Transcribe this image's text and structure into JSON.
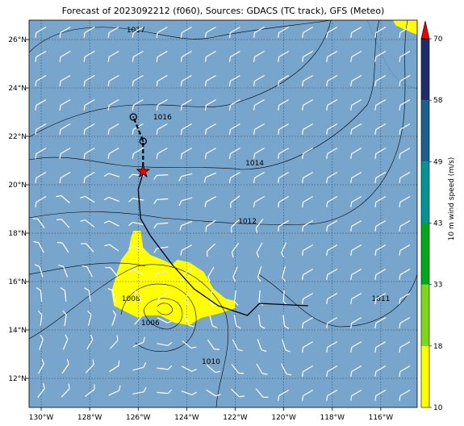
{
  "title": "Forecast of 2023092212 (f060), Sources: GDACS (TC track), GFS (Meteo)",
  "map": {
    "extent": {
      "lon": [
        -130.5,
        -114.5
      ],
      "lat": [
        10.8,
        26.8
      ]
    },
    "ocean_color": "#77a5cc",
    "land_color": "#6e9fc8",
    "lon_ticks": [
      {
        "value": -130,
        "label": "130°W"
      },
      {
        "value": -128,
        "label": "128°W"
      },
      {
        "value": -126,
        "label": "126°W"
      },
      {
        "value": -124,
        "label": "124°W"
      },
      {
        "value": -122,
        "label": "122°W"
      },
      {
        "value": -120,
        "label": "120°W"
      },
      {
        "value": -118,
        "label": "118°W"
      },
      {
        "value": -116,
        "label": "116°W"
      }
    ],
    "lat_ticks": [
      {
        "value": 12,
        "label": "12°N"
      },
      {
        "value": 14,
        "label": "14°N"
      },
      {
        "value": 16,
        "label": "16°N"
      },
      {
        "value": 18,
        "label": "18°N"
      },
      {
        "value": 20,
        "label": "20°N"
      },
      {
        "value": 22,
        "label": "22°N"
      },
      {
        "value": 24,
        "label": "24°N"
      },
      {
        "value": 26,
        "label": "26°N"
      }
    ],
    "isobar_labels": [
      {
        "text": "1017",
        "lon": -126.1,
        "lat": 26.3
      },
      {
        "text": "1016",
        "lon": -125.0,
        "lat": 22.7
      },
      {
        "text": "1014",
        "lon": -121.2,
        "lat": 20.8
      },
      {
        "text": "1012",
        "lon": -121.5,
        "lat": 18.4
      },
      {
        "text": "1011",
        "lon": -116.0,
        "lat": 15.2
      },
      {
        "text": "1008",
        "lon": -126.3,
        "lat": 15.2
      },
      {
        "text": "1006",
        "lon": -125.5,
        "lat": 14.2
      },
      {
        "text": "1010",
        "lon": -123.0,
        "lat": 12.6
      }
    ],
    "storm_track": {
      "past": [
        [
          -119.0,
          15.0
        ],
        [
          -121.0,
          15.1
        ],
        [
          -121.5,
          14.6
        ],
        [
          -122.7,
          15.0
        ],
        [
          -123.7,
          15.7
        ],
        [
          -124.6,
          16.7
        ],
        [
          -125.5,
          17.9
        ],
        [
          -125.9,
          18.6
        ],
        [
          -126.0,
          19.8
        ],
        [
          -125.8,
          20.5
        ]
      ],
      "forecast": [
        [
          -125.8,
          20.5
        ],
        [
          -125.8,
          21.3
        ],
        [
          -125.8,
          21.8
        ],
        [
          -126.0,
          22.3
        ],
        [
          -126.2,
          22.8
        ]
      ],
      "current_position": [
        -125.8,
        20.55
      ],
      "forecast_points": [
        [
          -125.8,
          21.8
        ],
        [
          -126.2,
          22.8
        ]
      ],
      "current_color": "#ee0000"
    },
    "wind_areas": [
      {
        "color": "#ffff00",
        "polygon": [
          [
            -126.2,
            18.1
          ],
          [
            -125.9,
            18.1
          ],
          [
            -125.8,
            17.4
          ],
          [
            -125.5,
            17.1
          ],
          [
            -125.0,
            16.9
          ],
          [
            -124.6,
            16.7
          ],
          [
            -124.4,
            16.9
          ],
          [
            -123.9,
            16.8
          ],
          [
            -123.3,
            16.4
          ],
          [
            -122.9,
            15.7
          ],
          [
            -122.4,
            15.3
          ],
          [
            -122.0,
            15.2
          ],
          [
            -122.0,
            14.9
          ],
          [
            -122.6,
            14.7
          ],
          [
            -123.4,
            14.5
          ],
          [
            -123.9,
            14.2
          ],
          [
            -124.5,
            14.3
          ],
          [
            -125.1,
            14.6
          ],
          [
            -125.7,
            14.6
          ],
          [
            -126.0,
            14.5
          ],
          [
            -126.6,
            14.8
          ],
          [
            -127.0,
            15.0
          ],
          [
            -127.1,
            15.6
          ],
          [
            -126.9,
            16.3
          ],
          [
            -126.7,
            16.9
          ],
          [
            -126.4,
            17.3
          ],
          [
            -126.3,
            17.8
          ]
        ]
      },
      {
        "color": "#ffff00",
        "polygon": [
          [
            -115.5,
            26.8
          ],
          [
            -114.5,
            26.8
          ],
          [
            -114.5,
            26.2
          ],
          [
            -115.0,
            26.4
          ],
          [
            -115.4,
            26.6
          ]
        ]
      }
    ],
    "wind_grid": {
      "lon_step": 1.0,
      "lat_step": 1.0,
      "color": "#ffffff"
    }
  },
  "colorbar": {
    "label": "10 m wind speed (m/s)",
    "segments": [
      {
        "from": 10,
        "to": 18,
        "color": "#ffff00"
      },
      {
        "from": 18,
        "to": 33,
        "color": "#80d61a"
      },
      {
        "from": 33,
        "to": 43,
        "color": "#00a81a"
      },
      {
        "from": 43,
        "to": 49,
        "color": "#009494"
      },
      {
        "from": 49,
        "to": 58,
        "color": "#1c5e8c"
      },
      {
        "from": 58,
        "to": 70,
        "color": "#1e2c6a"
      }
    ],
    "ticks": [
      "10",
      "18",
      "33",
      "43",
      "49",
      "58",
      "70"
    ],
    "extend_color": "#ee0000"
  }
}
